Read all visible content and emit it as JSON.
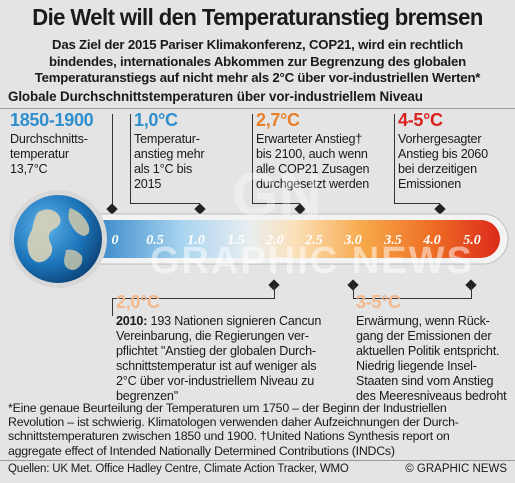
{
  "header": {
    "title": "Die Welt will den Temperaturanstieg bremsen",
    "intro_lines": [
      "Das Ziel der 2015 Pariser Klimakonferenz, COP21, wird ein rechtlich",
      "bindendes, internationales Abkommen zur Begrenzung des globalen",
      "Temperaturanstiegs auf nicht mehr als 2°C über vor-industriellen Werten*"
    ]
  },
  "section": {
    "heading": "Globale Durchschnittstemperaturen über vor-industriellem Niveau"
  },
  "thermometer": {
    "scale_labels": [
      "0",
      "0.5",
      "1.0",
      "1.5",
      "2.0",
      "2.5",
      "3.0",
      "3.5",
      "4.0",
      "5.0"
    ],
    "colors": {
      "blue_dark": "#1a5fa0",
      "blue_light": "#bfe0f5",
      "orange": "#f08a2c",
      "red": "#dc2a1c",
      "globe": "#1b73b8"
    }
  },
  "callouts_top": [
    {
      "value": "1850-1900",
      "lines": [
        "Durchschnitts-",
        "temperatur",
        "13,7°C"
      ]
    },
    {
      "value": "1,0°C",
      "lines": [
        "Temperatur-",
        "anstieg mehr",
        "als 1°C bis",
        "2015"
      ]
    },
    {
      "value": "2,7°C",
      "lines": [
        "Erwarteter Anstieg†",
        "bis 2100, auch wenn",
        "alle COP21 Zusagen",
        "durchgesetzt werden"
      ]
    },
    {
      "value": "4-5°C",
      "lines": [
        "Vorhergesagter",
        "Anstieg bis 2060",
        "bei derzeitigen",
        "Emissionen"
      ]
    }
  ],
  "callouts_bottom": [
    {
      "value": "2,0°C",
      "lead": "2010:",
      "lines": [
        " 193 Nationen signieren Cancun",
        "Vereinbarung, die Regierungen ver-",
        "pflichtet \"Anstieg der globalen Durch-",
        "schnittstemperatur ist auf weniger als",
        "2°C über vor-industriellem Niveau zu",
        "begrenzen\""
      ]
    },
    {
      "value": "3-5°C",
      "lines": [
        "Erwärmung, wenn Rück-",
        "gang der Emissionen der",
        "aktuellen Politik entspricht.",
        "Niedrig liegende Insel-",
        "Staaten sind vom Anstieg",
        "des Meeresniveaus bedroht"
      ]
    }
  ],
  "footnote_lines": [
    "*Eine genaue Beurteilung der Temperaturen um 1750 – der Beginn der Industriellen",
    "Revolution – ist schwierig. Klimatologen verwenden daher Aufzeichnungen der Durch-",
    "schnittstemperaturen zwischen 1850 und 1900. †United Nations Synthesis report on",
    "aggregate effect of Intended Nationally Determined Contributions (INDCs)"
  ],
  "footer": {
    "sources": "Quellen: UK Met. Office Hadley Centre, Climate Action Tracker, WMO",
    "credit": "© GRAPHIC NEWS"
  },
  "watermark": {
    "logo": "GN",
    "text": "GRAPHIC NEWS"
  }
}
